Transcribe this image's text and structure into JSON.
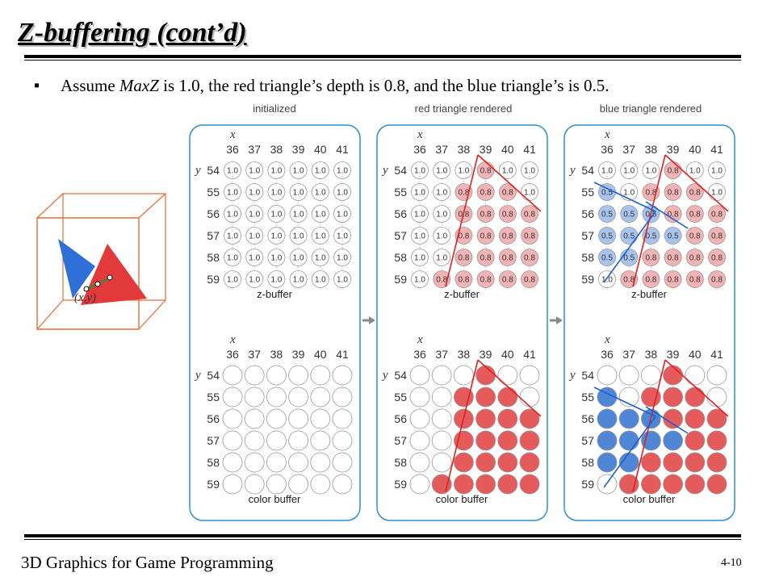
{
  "slide": {
    "title": "Z-buffering (cont’d)",
    "bullet_prefix": "Assume ",
    "bullet_italic": "MaxZ",
    "bullet_suffix": " is 1.0, the red triangle’s depth is 0.8, and the blue triangle’s is 0.5.",
    "footer": "3D Graphics for Game Programming",
    "page_number": "4-10"
  },
  "figure": {
    "panels": [
      {
        "title": "initialized"
      },
      {
        "title": "red triangle rendered"
      },
      {
        "title": "blue triangle rendered"
      }
    ],
    "x_axis_label": "x",
    "y_axis_label": "y",
    "x_values": [
      "36",
      "37",
      "38",
      "39",
      "40",
      "41"
    ],
    "y_values": [
      "54",
      "55",
      "56",
      "57",
      "58",
      "59"
    ],
    "zbuffer_label": "z-buffer",
    "color_buffer_label": "color buffer",
    "point_label": "(x,y)",
    "colors": {
      "red": "#e55b5b",
      "red_light": "#f1b3b3",
      "blue": "#4f86d6",
      "blue_light": "#a9c4ec",
      "panel_border": "#2a8fd0"
    },
    "zbuffers": [
      [
        [
          "1.0",
          "1.0",
          "1.0",
          "1.0",
          "1.0",
          "1.0"
        ],
        [
          "1.0",
          "1.0",
          "1.0",
          "1.0",
          "1.0",
          "1.0"
        ],
        [
          "1.0",
          "1.0",
          "1.0",
          "1.0",
          "1.0",
          "1.0"
        ],
        [
          "1.0",
          "1.0",
          "1.0",
          "1.0",
          "1.0",
          "1.0"
        ],
        [
          "1.0",
          "1.0",
          "1.0",
          "1.0",
          "1.0",
          "1.0"
        ],
        [
          "1.0",
          "1.0",
          "1.0",
          "1.0",
          "1.0",
          "1.0"
        ]
      ],
      [
        [
          "1.0",
          "1.0",
          "1.0",
          "0.8",
          "1.0",
          "1.0"
        ],
        [
          "1.0",
          "1.0",
          "0.8",
          "0.8",
          "0.8",
          "1.0"
        ],
        [
          "1.0",
          "1.0",
          "0.8",
          "0.8",
          "0.8",
          "0.8"
        ],
        [
          "1.0",
          "1.0",
          "0.8",
          "0.8",
          "0.8",
          "0.8"
        ],
        [
          "1.0",
          "1.0",
          "0.8",
          "0.8",
          "0.8",
          "0.8"
        ],
        [
          "1.0",
          "0.8",
          "0.8",
          "0.8",
          "0.8",
          "0.8"
        ]
      ],
      [
        [
          "1.0",
          "1.0",
          "1.0",
          "0.8",
          "1.0",
          "1.0"
        ],
        [
          "0.5",
          "1.0",
          "0.8",
          "0.8",
          "0.8",
          "1.0"
        ],
        [
          "0.5",
          "0.5",
          "0.5",
          "0.8",
          "0.8",
          "0.8"
        ],
        [
          "0.5",
          "0.5",
          "0.5",
          "0.5",
          "0.8",
          "0.8"
        ],
        [
          "0.5",
          "0.5",
          "0.8",
          "0.8",
          "0.8",
          "0.8"
        ],
        [
          "1.0",
          "0.8",
          "0.8",
          "0.8",
          "0.8",
          "0.8"
        ]
      ]
    ],
    "colorbuffers": [
      [
        [
          "w",
          "w",
          "w",
          "w",
          "w",
          "w"
        ],
        [
          "w",
          "w",
          "w",
          "w",
          "w",
          "w"
        ],
        [
          "w",
          "w",
          "w",
          "w",
          "w",
          "w"
        ],
        [
          "w",
          "w",
          "w",
          "w",
          "w",
          "w"
        ],
        [
          "w",
          "w",
          "w",
          "w",
          "w",
          "w"
        ],
        [
          "w",
          "w",
          "w",
          "w",
          "w",
          "w"
        ]
      ],
      [
        [
          "w",
          "w",
          "w",
          "r",
          "w",
          "w"
        ],
        [
          "w",
          "w",
          "r",
          "r",
          "r",
          "w"
        ],
        [
          "w",
          "w",
          "r",
          "r",
          "r",
          "r"
        ],
        [
          "w",
          "w",
          "r",
          "r",
          "r",
          "r"
        ],
        [
          "w",
          "w",
          "r",
          "r",
          "r",
          "r"
        ],
        [
          "w",
          "r",
          "r",
          "r",
          "r",
          "r"
        ]
      ],
      [
        [
          "w",
          "w",
          "w",
          "r",
          "w",
          "w"
        ],
        [
          "b",
          "w",
          "r",
          "r",
          "r",
          "w"
        ],
        [
          "b",
          "b",
          "b",
          "r",
          "r",
          "r"
        ],
        [
          "b",
          "b",
          "b",
          "b",
          "r",
          "r"
        ],
        [
          "b",
          "b",
          "r",
          "r",
          "r",
          "r"
        ],
        [
          "w",
          "r",
          "r",
          "r",
          "r",
          "r"
        ]
      ]
    ]
  }
}
